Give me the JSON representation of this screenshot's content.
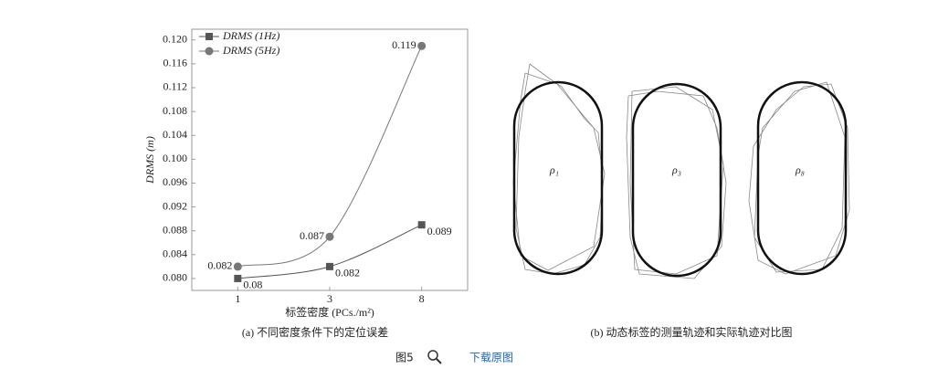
{
  "chart_data": {
    "type": "line",
    "x_label": "标签密度 (PCs./m²)",
    "y_label": "DRMS (m)",
    "categories": [
      "1",
      "3",
      "8"
    ],
    "series": [
      {
        "name": "DRMS (1Hz)",
        "color": "#555555",
        "marker": "square",
        "values": [
          0.08,
          0.082,
          0.089
        ]
      },
      {
        "name": "DRMS (5Hz)",
        "color": "#777777",
        "marker": "circle",
        "values": [
          0.082,
          0.087,
          0.119
        ]
      }
    ],
    "ylim": [
      0.078,
      0.1218
    ],
    "yticks": [
      {
        "value": 0.08,
        "label": "0.080"
      },
      0.084,
      0.088,
      0.092,
      0.096,
      {
        "value": 0.1,
        "label": "0.100"
      },
      0.104,
      0.108,
      0.112,
      0.116,
      {
        "value": 0.12,
        "label": "0.120"
      }
    ],
    "legend": "upper left",
    "grid": false
  },
  "right_panel": {
    "labels": [
      "ρ₁",
      "ρ₃",
      "ρ₈"
    ]
  },
  "captions": {
    "a": "(a) 不同密度条件下的定位误差",
    "b": "(b) 动态标签的测量轨迹和实际轨迹对比图"
  },
  "footer": {
    "figure": "图5",
    "download": "下载原图"
  }
}
